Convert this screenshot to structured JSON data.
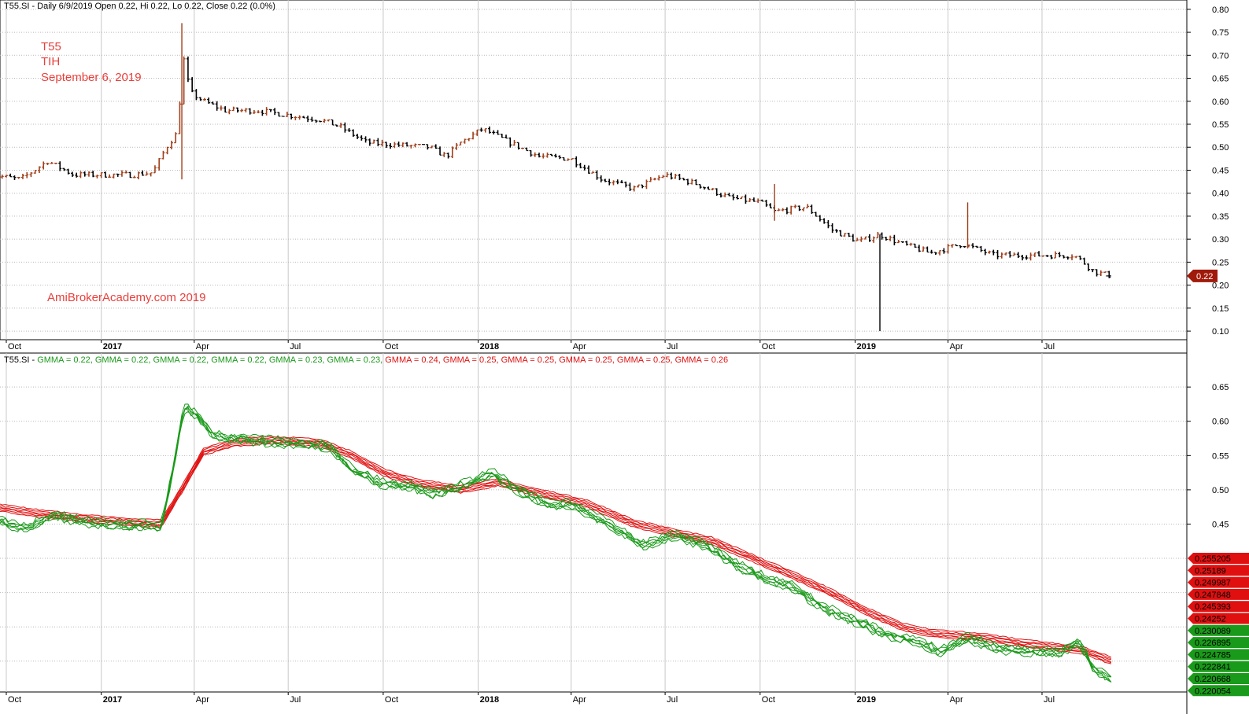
{
  "colors": {
    "up_bar": "#a0401c",
    "down_bar": "#000000",
    "gmma_short": "#1a9a1a",
    "gmma_long": "#e01010",
    "label_red": "#e8403c",
    "price_tag": "#a01a0a"
  },
  "top_header": "T55.SI - Daily 6/9/2019 Open 0.22, Hi 0.22, Lo 0.22, Close 0.22 (0.0%)",
  "annotations": {
    "symbol": "T55",
    "name": "TIH",
    "date": "September 6, 2019",
    "watermark": "AmiBrokerAcademy.com   2019"
  },
  "gmma_header": [
    {
      "text": "T55.SI - ",
      "color": "#000000"
    },
    {
      "text": "GMMA = 0.22, ",
      "color": "#1a9a1a"
    },
    {
      "text": "GMMA = 0.22, ",
      "color": "#1a9a1a"
    },
    {
      "text": "GMMA = 0.22, ",
      "color": "#1a9a1a"
    },
    {
      "text": "GMMA = 0.22, ",
      "color": "#1a9a1a"
    },
    {
      "text": "GMMA = 0.23, ",
      "color": "#1a9a1a"
    },
    {
      "text": "GMMA = 0.23, ",
      "color": "#1a9a1a"
    },
    {
      "text": "GMMA = 0.24, ",
      "color": "#e01010"
    },
    {
      "text": "GMMA = 0.25, ",
      "color": "#e01010"
    },
    {
      "text": "GMMA = 0.25, ",
      "color": "#e01010"
    },
    {
      "text": "GMMA = 0.25, ",
      "color": "#e01010"
    },
    {
      "text": "GMMA = 0.25, ",
      "color": "#e01010"
    },
    {
      "text": "GMMA = 0.26",
      "color": "#e01010"
    }
  ],
  "chart_data": [
    {
      "type": "line",
      "subtype": "price bars (OHLC)",
      "x_tick_labels": [
        {
          "label": "Oct",
          "date": "2016-10",
          "bold": false
        },
        {
          "label": "2017",
          "date": "2017-01",
          "bold": true
        },
        {
          "label": "Apr",
          "date": "2017-04",
          "bold": false
        },
        {
          "label": "Jul",
          "date": "2017-07",
          "bold": false
        },
        {
          "label": "Oct",
          "date": "2017-10",
          "bold": false
        },
        {
          "label": "2018",
          "date": "2018-01",
          "bold": true
        },
        {
          "label": "Apr",
          "date": "2018-04",
          "bold": false
        },
        {
          "label": "Jul",
          "date": "2018-07",
          "bold": false
        },
        {
          "label": "Oct",
          "date": "2018-10",
          "bold": false
        },
        {
          "label": "2019",
          "date": "2019-01",
          "bold": true
        },
        {
          "label": "Apr",
          "date": "2019-04",
          "bold": false
        },
        {
          "label": "Jul",
          "date": "2019-07",
          "bold": false
        }
      ],
      "y_tick_labels": [
        "0.80",
        "0.75",
        "0.70",
        "0.65",
        "0.60",
        "0.55",
        "0.50",
        "0.45",
        "0.40",
        "0.35",
        "0.30",
        "0.25",
        "0.20",
        "0.15",
        "0.10"
      ],
      "ylim": [
        0.095,
        0.81
      ],
      "grid": true,
      "last_price_tag": "0.22",
      "close_points": [
        [
          "2016-09-15",
          0.44
        ],
        [
          "2016-10-15",
          0.43
        ],
        [
          "2016-11-10",
          0.47
        ],
        [
          "2016-12-05",
          0.44
        ],
        [
          "2017-01-05",
          0.44
        ],
        [
          "2017-02-01",
          0.44
        ],
        [
          "2017-02-20",
          0.445
        ],
        [
          "2017-03-05",
          0.5
        ],
        [
          "2017-03-15",
          0.53
        ],
        [
          "2017-03-22",
          0.69
        ],
        [
          "2017-03-28",
          0.62
        ],
        [
          "2017-04-10",
          0.6
        ],
        [
          "2017-05-01",
          0.58
        ],
        [
          "2017-06-01",
          0.58
        ],
        [
          "2017-07-01",
          0.57
        ],
        [
          "2017-08-01",
          0.56
        ],
        [
          "2017-08-20",
          0.545
        ],
        [
          "2017-09-15",
          0.51
        ],
        [
          "2017-10-15",
          0.505
        ],
        [
          "2017-11-15",
          0.5
        ],
        [
          "2017-12-01",
          0.48
        ],
        [
          "2017-12-15",
          0.51
        ],
        [
          "2018-01-05",
          0.54
        ],
        [
          "2018-02-01",
          0.51
        ],
        [
          "2018-03-01",
          0.48
        ],
        [
          "2018-04-01",
          0.475
        ],
        [
          "2018-05-01",
          0.43
        ],
        [
          "2018-06-01",
          0.41
        ],
        [
          "2018-07-01",
          0.44
        ],
        [
          "2018-08-01",
          0.42
        ],
        [
          "2018-09-01",
          0.39
        ],
        [
          "2018-10-01",
          0.38
        ],
        [
          "2018-10-15",
          0.36
        ],
        [
          "2018-11-15",
          0.37
        ],
        [
          "2018-12-10",
          0.32
        ],
        [
          "2019-01-05",
          0.295
        ],
        [
          "2019-01-25",
          0.31
        ],
        [
          "2019-02-15",
          0.29
        ],
        [
          "2019-03-15",
          0.27
        ],
        [
          "2019-04-15",
          0.29
        ],
        [
          "2019-05-15",
          0.265
        ],
        [
          "2019-06-15",
          0.265
        ],
        [
          "2019-07-15",
          0.265
        ],
        [
          "2019-08-01",
          0.265
        ],
        [
          "2019-08-10",
          0.25
        ],
        [
          "2019-08-20",
          0.23
        ],
        [
          "2019-09-06",
          0.22
        ]
      ],
      "spikes": [
        [
          "2017-03-20",
          0.43,
          0.77
        ],
        [
          "2019-01-25",
          0.1,
          0.31
        ],
        [
          "2019-04-20",
          0.28,
          0.38
        ],
        [
          "2018-10-15",
          0.34,
          0.42
        ]
      ]
    },
    {
      "type": "line",
      "subtype": "GMMA (Guppy Multiple Moving Average)",
      "y_tick_labels": [
        "0.65",
        "0.60",
        "0.55",
        "0.50",
        "0.45"
      ],
      "ylim": [
        0.205,
        0.672
      ],
      "series_groups": [
        {
          "group": "short",
          "color": "#1a9a1a",
          "end_labels": [
            "0.230089",
            "0.226895",
            "0.224785",
            "0.222841",
            "0.220668",
            "0.220054"
          ]
        },
        {
          "group": "long",
          "color": "#e01010",
          "end_labels": [
            "0.255205",
            "0.25189",
            "0.249987",
            "0.247848",
            "0.245393",
            "0.24252"
          ]
        }
      ],
      "short_anchor": [
        [
          "2016-09-15",
          0.46
        ],
        [
          "2016-10-20",
          0.445
        ],
        [
          "2016-11-15",
          0.465
        ],
        [
          "2016-12-15",
          0.455
        ],
        [
          "2017-01-15",
          0.45
        ],
        [
          "2017-02-15",
          0.45
        ],
        [
          "2017-02-28",
          0.445
        ],
        [
          "2017-03-10",
          0.52
        ],
        [
          "2017-03-22",
          0.62
        ],
        [
          "2017-04-05",
          0.61
        ],
        [
          "2017-04-20",
          0.58
        ],
        [
          "2017-05-20",
          0.575
        ],
        [
          "2017-07-01",
          0.57
        ],
        [
          "2017-08-10",
          0.565
        ],
        [
          "2017-09-01",
          0.53
        ],
        [
          "2017-10-01",
          0.51
        ],
        [
          "2017-11-01",
          0.505
        ],
        [
          "2017-11-20",
          0.495
        ],
        [
          "2017-12-20",
          0.51
        ],
        [
          "2018-01-15",
          0.525
        ],
        [
          "2018-02-10",
          0.5
        ],
        [
          "2018-03-10",
          0.48
        ],
        [
          "2018-04-01",
          0.48
        ],
        [
          "2018-05-10",
          0.45
        ],
        [
          "2018-06-10",
          0.42
        ],
        [
          "2018-07-10",
          0.435
        ],
        [
          "2018-08-10",
          0.42
        ],
        [
          "2018-09-10",
          0.39
        ],
        [
          "2018-10-10",
          0.37
        ],
        [
          "2018-11-01",
          0.36
        ],
        [
          "2018-12-01",
          0.33
        ],
        [
          "2019-01-01",
          0.31
        ],
        [
          "2019-02-01",
          0.29
        ],
        [
          "2019-03-01",
          0.28
        ],
        [
          "2019-03-25",
          0.265
        ],
        [
          "2019-04-20",
          0.285
        ],
        [
          "2019-05-20",
          0.27
        ],
        [
          "2019-06-20",
          0.265
        ],
        [
          "2019-07-20",
          0.265
        ],
        [
          "2019-08-05",
          0.28
        ],
        [
          "2019-08-20",
          0.24
        ],
        [
          "2019-09-06",
          0.225
        ]
      ],
      "long_anchor": [
        [
          "2016-09-15",
          0.475
        ],
        [
          "2016-11-01",
          0.465
        ],
        [
          "2016-12-15",
          0.458
        ],
        [
          "2017-02-01",
          0.452
        ],
        [
          "2017-02-28",
          0.45
        ],
        [
          "2017-03-20",
          0.5
        ],
        [
          "2017-04-10",
          0.555
        ],
        [
          "2017-05-10",
          0.568
        ],
        [
          "2017-06-15",
          0.572
        ],
        [
          "2017-08-01",
          0.568
        ],
        [
          "2017-09-01",
          0.55
        ],
        [
          "2017-10-01",
          0.525
        ],
        [
          "2017-11-01",
          0.51
        ],
        [
          "2017-12-15",
          0.5
        ],
        [
          "2018-01-20",
          0.51
        ],
        [
          "2018-03-01",
          0.495
        ],
        [
          "2018-04-15",
          0.48
        ],
        [
          "2018-06-01",
          0.45
        ],
        [
          "2018-07-15",
          0.435
        ],
        [
          "2018-08-15",
          0.425
        ],
        [
          "2018-10-01",
          0.395
        ],
        [
          "2018-11-01",
          0.375
        ],
        [
          "2018-12-01",
          0.355
        ],
        [
          "2019-01-15",
          0.32
        ],
        [
          "2019-02-15",
          0.3
        ],
        [
          "2019-03-15",
          0.29
        ],
        [
          "2019-05-01",
          0.285
        ],
        [
          "2019-06-15",
          0.275
        ],
        [
          "2019-07-15",
          0.27
        ],
        [
          "2019-08-10",
          0.265
        ],
        [
          "2019-09-06",
          0.25
        ]
      ]
    }
  ]
}
